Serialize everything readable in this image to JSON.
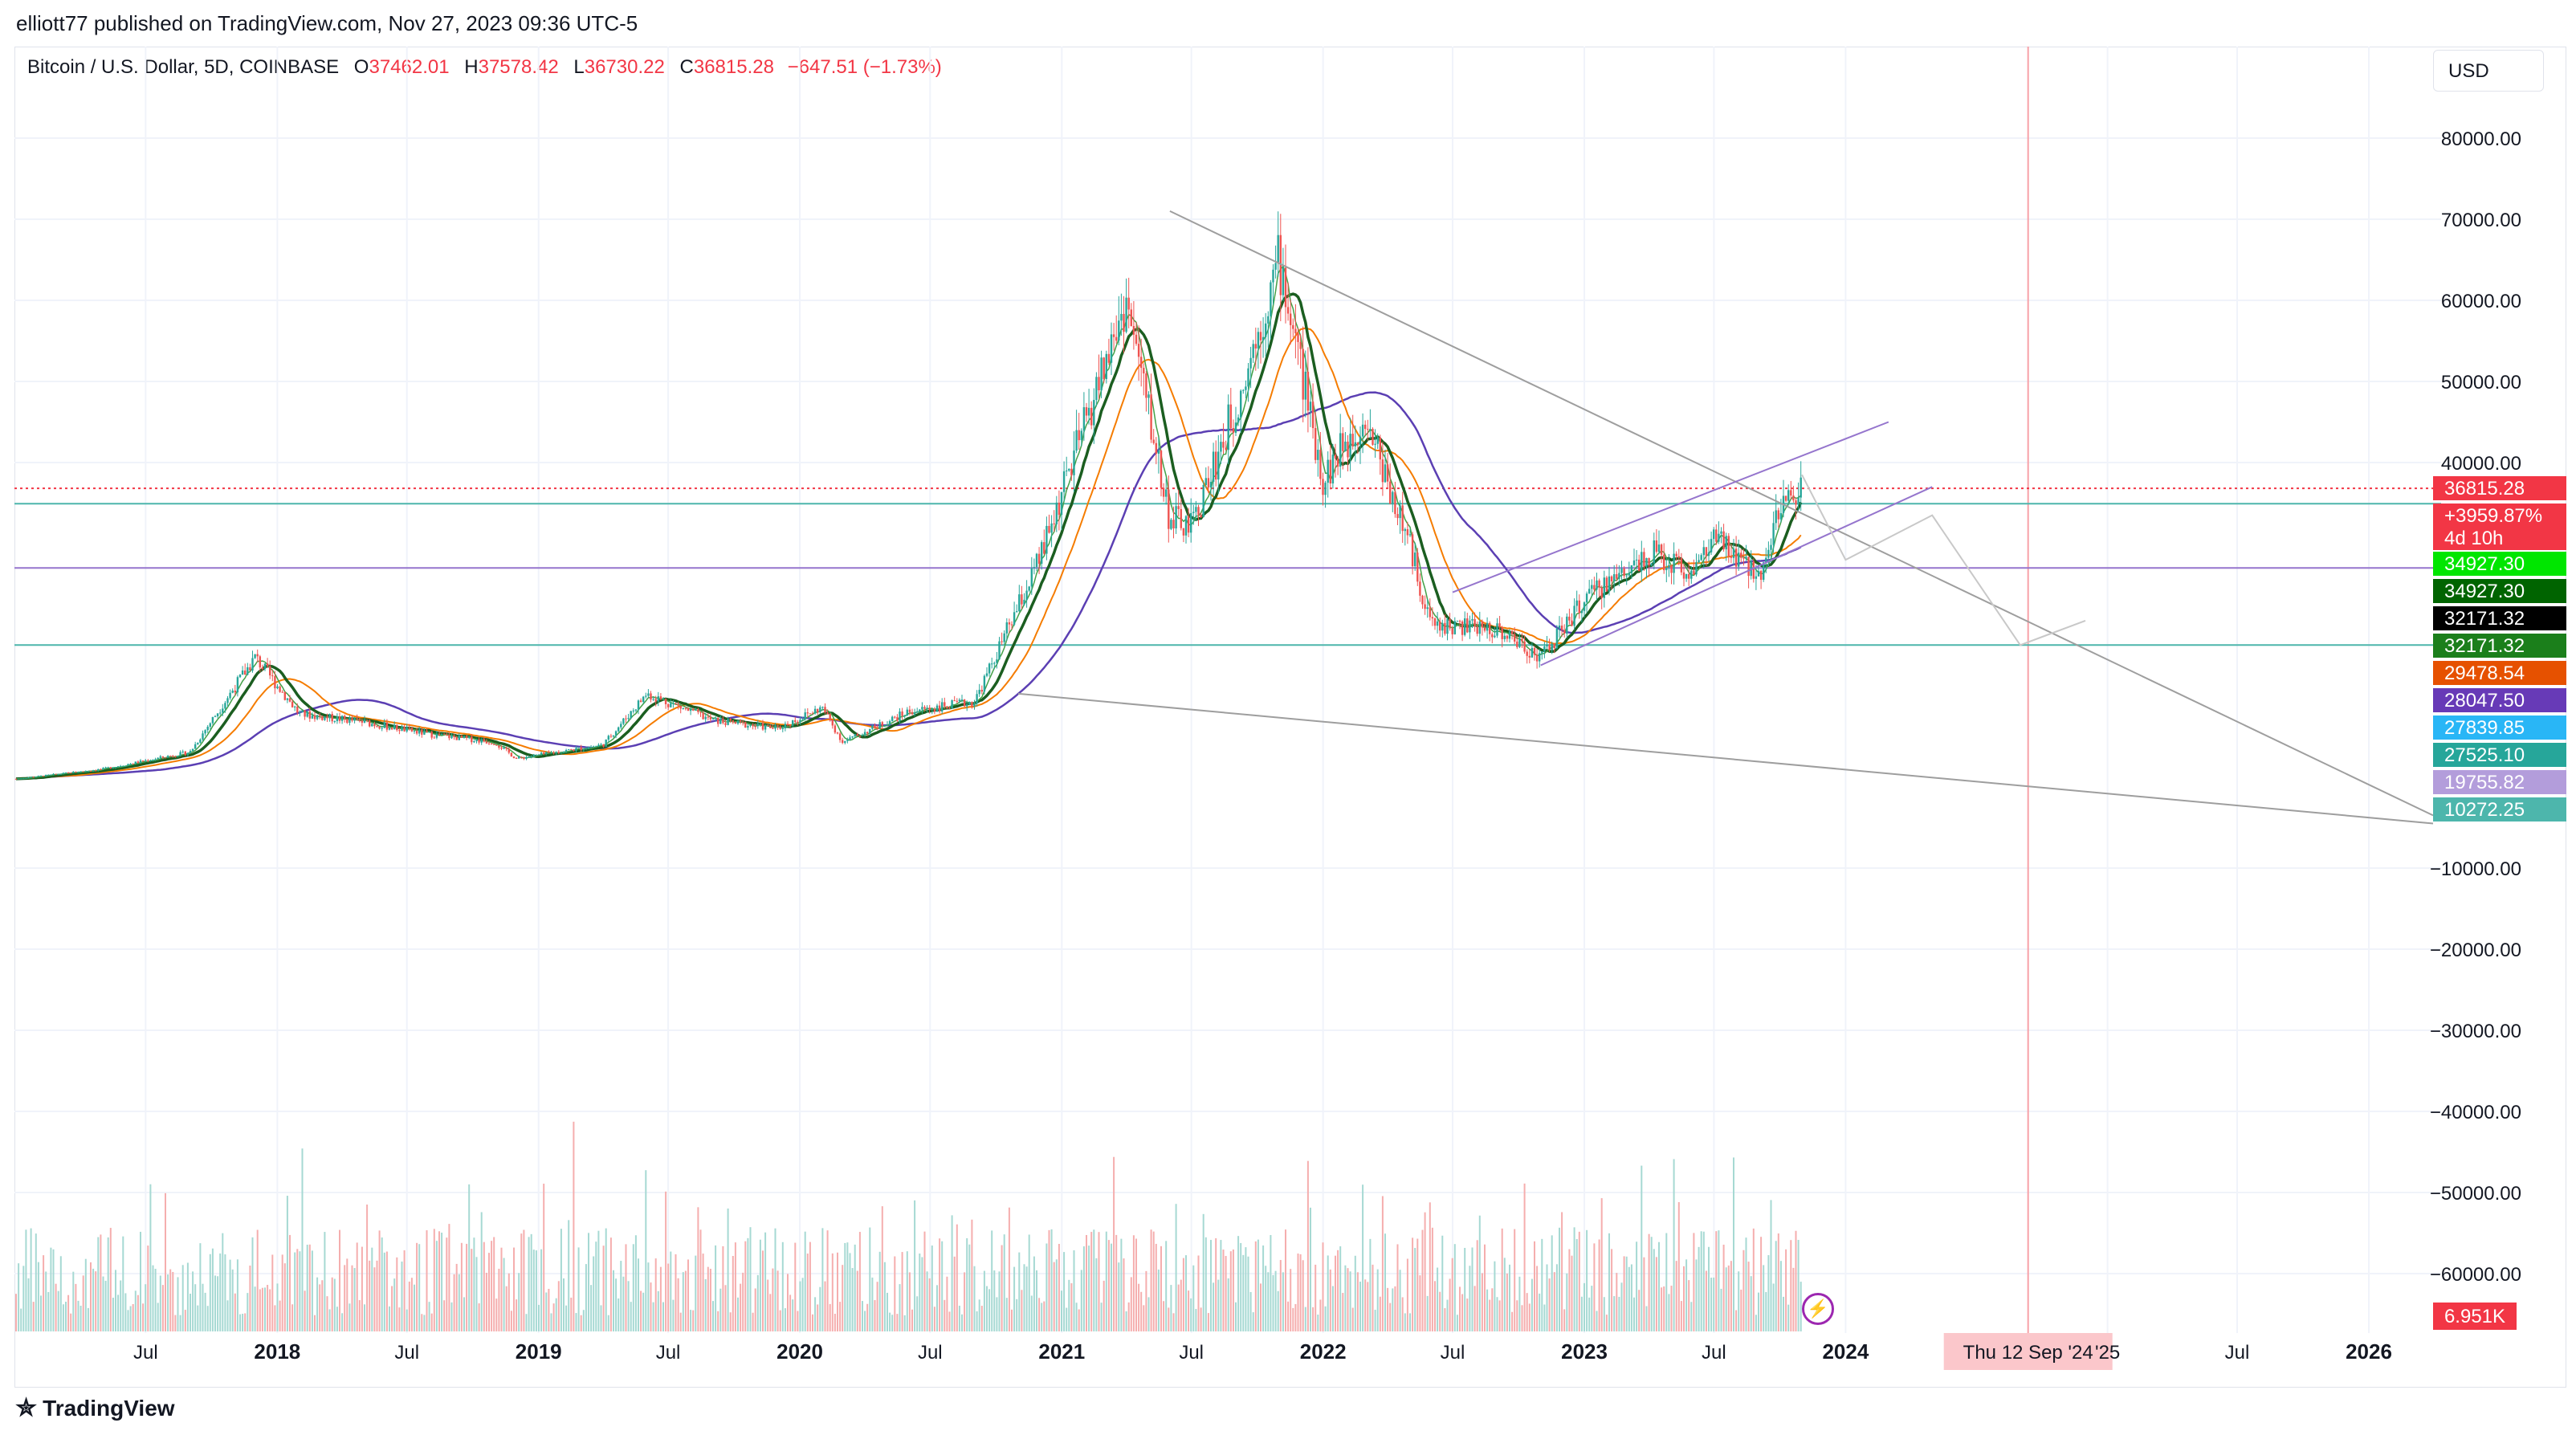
{
  "header": {
    "published_line": "elliott77 published on TradingView.com, Nov 27, 2023 09:36 UTC-5"
  },
  "legend": {
    "symbol": "Bitcoin / U.S. Dollar, 5D, COINBASE",
    "o_label": "O",
    "o_value": "37462.01",
    "h_label": "H",
    "h_value": "37578.42",
    "l_label": "L",
    "l_value": "36730.22",
    "c_label": "C",
    "c_value": "36815.28",
    "change": "−647.51 (−1.73%)"
  },
  "currency": "USD",
  "footer": {
    "brand": "TradingView"
  },
  "colors": {
    "up": "#26a69a",
    "down": "#ef5350",
    "ma_slow": "#5b3fb3",
    "ma_mid": "#f57c00",
    "ma_fast_green": "#1b5e20",
    "ma_fast_red": "#8b1a1a",
    "channel": "#9575cd",
    "trendline": "#9e9e9e",
    "hline_teal": "#4db6ac",
    "hline_purple": "#9575cd",
    "price_line": "#f23645"
  },
  "chart_data": {
    "type": "candlestick",
    "title": "Bitcoin / U.S. Dollar, 5D, COINBASE",
    "y_axis": {
      "ticks": [
        "80000.00",
        "70000.00",
        "60000.00",
        "50000.00",
        "40000.00",
        "−10000.00",
        "−20000.00",
        "−30000.00",
        "−40000.00",
        "−50000.00",
        "−60000.00"
      ],
      "tick_values": [
        80000,
        70000,
        60000,
        50000,
        40000,
        -10000,
        -20000,
        -30000,
        -40000,
        -50000,
        -60000
      ]
    },
    "x_axis": {
      "ticks": [
        "Jul",
        "2018",
        "Jul",
        "2019",
        "Jul",
        "2020",
        "Jul",
        "2021",
        "Jul",
        "2022",
        "Jul",
        "2023",
        "Jul",
        "2024",
        "Thu 12 Sep '24",
        "'25",
        "Jul",
        "2026"
      ],
      "tick_dates": [
        "2017-07-01",
        "2018-01-01",
        "2018-07-01",
        "2019-01-01",
        "2019-07-01",
        "2020-01-01",
        "2020-07-01",
        "2021-01-01",
        "2021-07-01",
        "2022-01-01",
        "2022-07-01",
        "2023-01-01",
        "2023-07-01",
        "2024-01-01",
        "2024-09-12",
        "2025-01-01",
        "2025-07-01",
        "2026-01-01"
      ],
      "bold": [
        "2018",
        "2019",
        "2020",
        "2021",
        "2022",
        "2023",
        "2024",
        "2026"
      ],
      "crosshair_label": "Thu 12 Sep '24"
    },
    "price_labels": [
      {
        "text": "36815.28",
        "value": 36815.28,
        "bg": "#f23645",
        "fg": "#ffffff"
      },
      {
        "text": "+3959.87%",
        "value": null,
        "bg": "#f23645",
        "fg": "#ffffff"
      },
      {
        "text": "4d 10h",
        "value": null,
        "bg": "#f23645",
        "fg": "#ffffff"
      },
      {
        "text": "34927.30",
        "value": 34927.3,
        "bg": "#00e600",
        "fg": "#ffffff"
      },
      {
        "text": "34927.30",
        "value": 34927.3,
        "bg": "#006400",
        "fg": "#ffffff"
      },
      {
        "text": "32171.32",
        "value": 32171.32,
        "bg": "#000000",
        "fg": "#ffffff"
      },
      {
        "text": "32171.32",
        "value": 32171.32,
        "bg": "#1b7f1b",
        "fg": "#ffffff"
      },
      {
        "text": "29478.54",
        "value": 29478.54,
        "bg": "#e65100",
        "fg": "#ffffff"
      },
      {
        "text": "28047.50",
        "value": 28047.5,
        "bg": "#673ab7",
        "fg": "#ffffff"
      },
      {
        "text": "27839.85",
        "value": 27839.85,
        "bg": "#29b6f6",
        "fg": "#ffffff"
      },
      {
        "text": "27525.10",
        "value": 27525.1,
        "bg": "#26a69a",
        "fg": "#ffffff"
      },
      {
        "text": "19755.82",
        "value": 19755.82,
        "bg": "#b39ddb",
        "fg": "#ffffff"
      },
      {
        "text": "10272.25",
        "value": 10272.25,
        "bg": "#4db6ac",
        "fg": "#ffffff"
      }
    ],
    "volume_label": "6.951K",
    "last": {
      "open": 37462.01,
      "high": 37578.42,
      "low": 36730.22,
      "close": 36815.28,
      "change": -647.51,
      "change_pct": -1.73
    },
    "price_path": [
      [
        "2017-01",
        1000
      ],
      [
        "2017-05",
        2200
      ],
      [
        "2017-09",
        4300
      ],
      [
        "2017-12",
        16000
      ],
      [
        "2018-02",
        9000
      ],
      [
        "2018-05",
        8000
      ],
      [
        "2018-08",
        6500
      ],
      [
        "2018-11",
        5500
      ],
      [
        "2018-12",
        3500
      ],
      [
        "2019-04",
        5200
      ],
      [
        "2019-06",
        11500
      ],
      [
        "2019-09",
        8200
      ],
      [
        "2019-12",
        7200
      ],
      [
        "2020-02",
        9800
      ],
      [
        "2020-03",
        5500
      ],
      [
        "2020-06",
        9300
      ],
      [
        "2020-09",
        10500
      ],
      [
        "2020-12",
        28000
      ],
      [
        "2021-04",
        60000
      ],
      [
        "2021-06",
        33000
      ],
      [
        "2021-07",
        32000
      ],
      [
        "2021-09",
        47000
      ],
      [
        "2021-11",
        65000
      ],
      [
        "2022-01",
        38000
      ],
      [
        "2022-03",
        46000
      ],
      [
        "2022-05",
        30000
      ],
      [
        "2022-06",
        20000
      ],
      [
        "2022-09",
        19500
      ],
      [
        "2022-11",
        16000
      ],
      [
        "2023-01",
        23000
      ],
      [
        "2023-04",
        29000
      ],
      [
        "2023-06",
        26500
      ],
      [
        "2023-07",
        30500
      ],
      [
        "2023-09",
        26000
      ],
      [
        "2023-10",
        34500
      ],
      [
        "2023-11",
        36815
      ]
    ],
    "legend_position": "top-left"
  }
}
